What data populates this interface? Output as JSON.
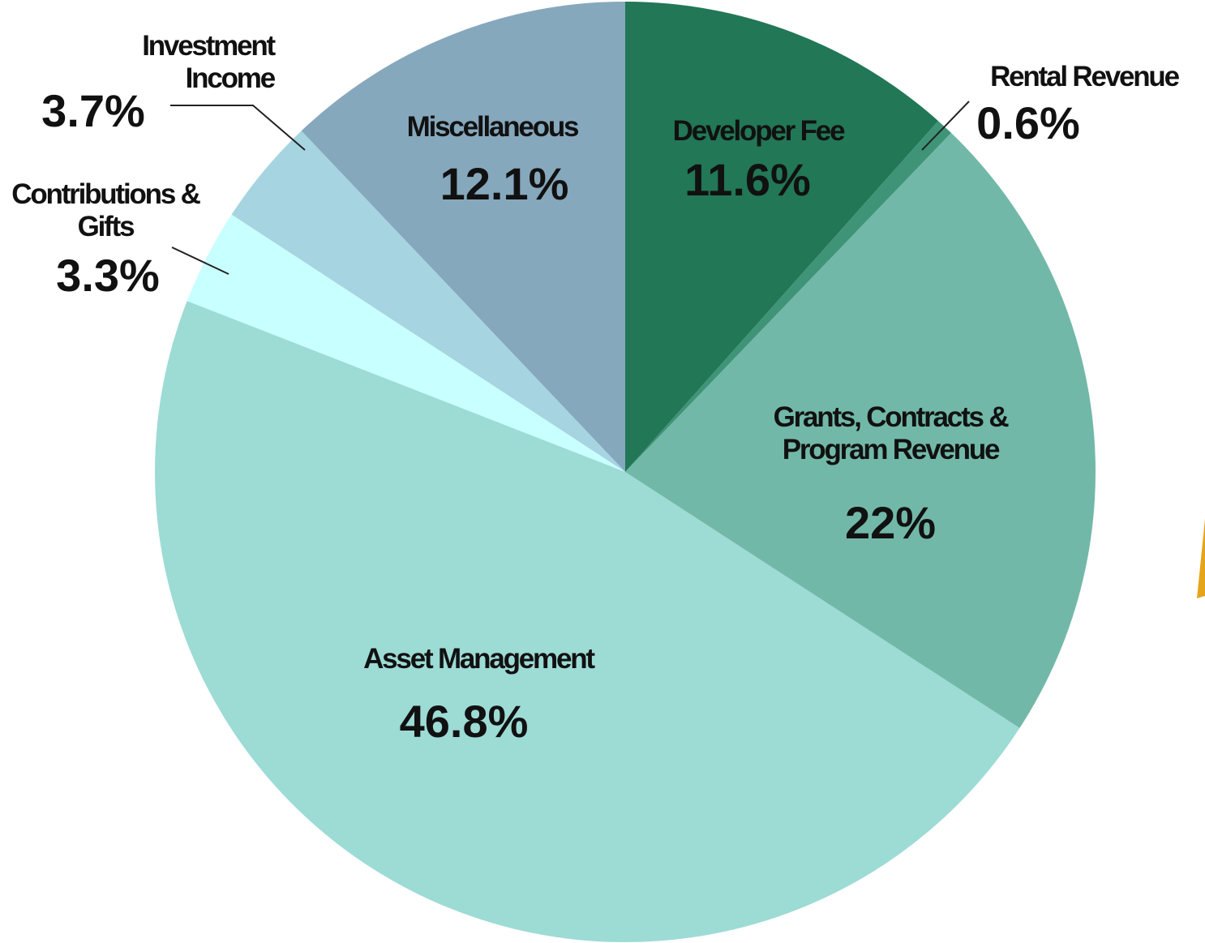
{
  "chart_data": {
    "type": "pie",
    "categories": [
      "Developer Fee",
      "Rental Revenue",
      "Grants, Contracts & Program Revenue",
      "Asset Management",
      "Contributions & Gifts",
      "Investment Income",
      "Miscellaneous"
    ],
    "values": [
      11.6,
      0.6,
      22,
      46.8,
      3.3,
      3.7,
      12.1
    ],
    "value_labels": [
      "11.6%",
      "0.6%",
      "22%",
      "46.8%",
      "3.3%",
      "3.7%",
      "12.1%"
    ],
    "colors": [
      "#227756",
      "#3f9478",
      "#72b8a8",
      "#9ddbd5",
      "#c8ffff",
      "#a6d4e1",
      "#86a8bd"
    ]
  }
}
